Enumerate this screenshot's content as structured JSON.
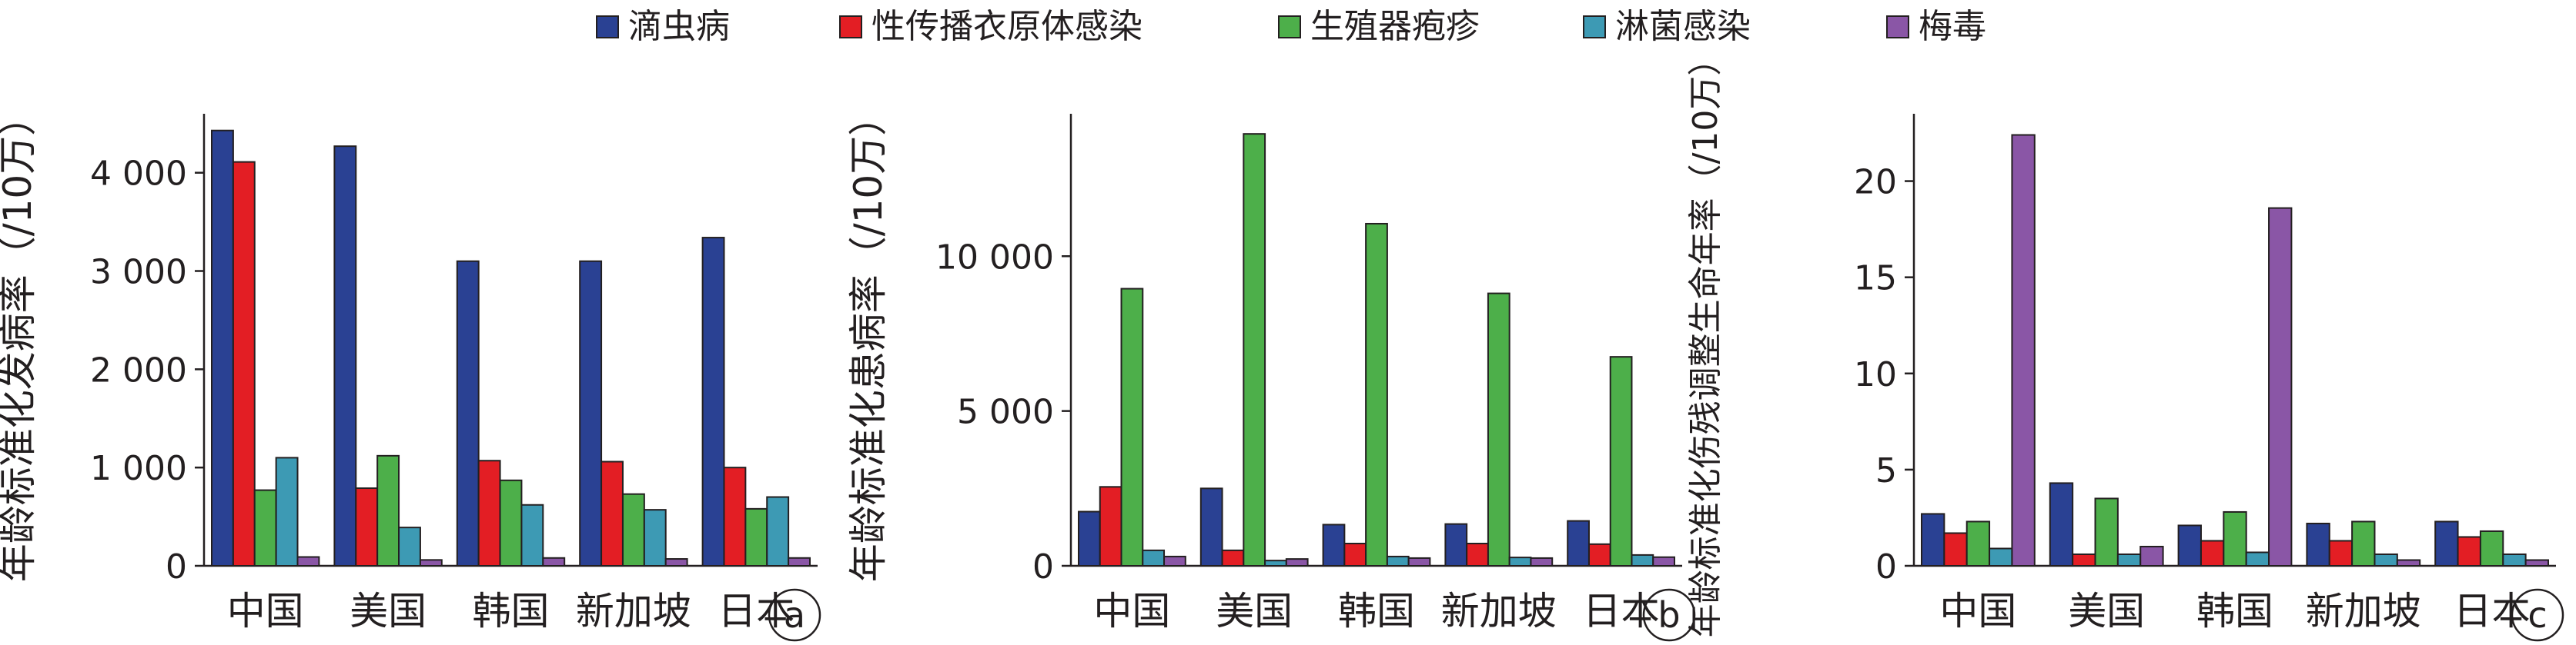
{
  "legend": {
    "items": [
      {
        "label": "滴虫病",
        "color": "#2a4193"
      },
      {
        "label": "性传播衣原体感染",
        "color": "#e31e24"
      },
      {
        "label": "生殖器疱疹",
        "color": "#4daf4a"
      },
      {
        "label": "淋菌感染",
        "color": "#3d9ab4"
      },
      {
        "label": "梅毒",
        "color": "#8a56a6"
      }
    ]
  },
  "chart_data": [
    {
      "type": "bar",
      "panel_label": "a",
      "ylabel": "年龄标准化发病率（/10万）",
      "categories": [
        "中国",
        "美国",
        "韩国",
        "新加坡",
        "日本"
      ],
      "ylim": [
        0,
        4600
      ],
      "yticks": [
        0,
        1000,
        2000,
        3000,
        4000
      ],
      "ytick_labels": [
        "0",
        "1 000",
        "2 000",
        "3 000",
        "4 000"
      ],
      "series": [
        {
          "name": "滴虫病",
          "values": [
            4430,
            4270,
            3100,
            3100,
            3340
          ]
        },
        {
          "name": "性传播衣原体感染",
          "values": [
            4110,
            790,
            1070,
            1060,
            1000
          ]
        },
        {
          "name": "生殖器疱疹",
          "values": [
            770,
            1120,
            870,
            730,
            580
          ]
        },
        {
          "name": "淋菌感染",
          "values": [
            1100,
            390,
            620,
            570,
            700
          ]
        },
        {
          "name": "梅毒",
          "values": [
            90,
            60,
            80,
            70,
            80
          ]
        }
      ]
    },
    {
      "type": "bar",
      "panel_label": "b",
      "ylabel": "年龄标准化患病率（/10万）",
      "categories": [
        "中国",
        "美国",
        "韩国",
        "新加坡",
        "日本"
      ],
      "ylim": [
        0,
        14600
      ],
      "yticks": [
        0,
        5000,
        10000
      ],
      "ytick_labels": [
        "0",
        "5 000",
        "10 000"
      ],
      "series": [
        {
          "name": "滴虫病",
          "values": [
            1750,
            2500,
            1330,
            1350,
            1450
          ]
        },
        {
          "name": "性传播衣原体感染",
          "values": [
            2550,
            500,
            720,
            720,
            700
          ]
        },
        {
          "name": "生殖器疱疹",
          "values": [
            8950,
            13950,
            11050,
            8800,
            6750
          ]
        },
        {
          "name": "淋菌感染",
          "values": [
            500,
            170,
            300,
            270,
            350
          ]
        },
        {
          "name": "梅毒",
          "values": [
            300,
            220,
            250,
            250,
            280
          ]
        }
      ]
    },
    {
      "type": "bar",
      "panel_label": "c",
      "ylabel": "年龄标准化伤残调整生命年率（/10万）",
      "categories": [
        "中国",
        "美国",
        "韩国",
        "新加坡",
        "日本"
      ],
      "ylim": [
        0,
        23.5
      ],
      "yticks": [
        0,
        5,
        10,
        15,
        20
      ],
      "ytick_labels": [
        "0",
        "5",
        "10",
        "15",
        "20"
      ],
      "series": [
        {
          "name": "滴虫病",
          "values": [
            2.7,
            4.3,
            2.1,
            2.2,
            2.3
          ]
        },
        {
          "name": "性传播衣原体感染",
          "values": [
            1.7,
            0.6,
            1.3,
            1.3,
            1.5
          ]
        },
        {
          "name": "生殖器疱疹",
          "values": [
            2.3,
            3.5,
            2.8,
            2.3,
            1.8
          ]
        },
        {
          "name": "淋菌感染",
          "values": [
            0.9,
            0.6,
            0.7,
            0.6,
            0.6
          ]
        },
        {
          "name": "梅毒",
          "values": [
            22.4,
            1.0,
            18.6,
            0.3,
            0.3
          ]
        }
      ]
    }
  ]
}
